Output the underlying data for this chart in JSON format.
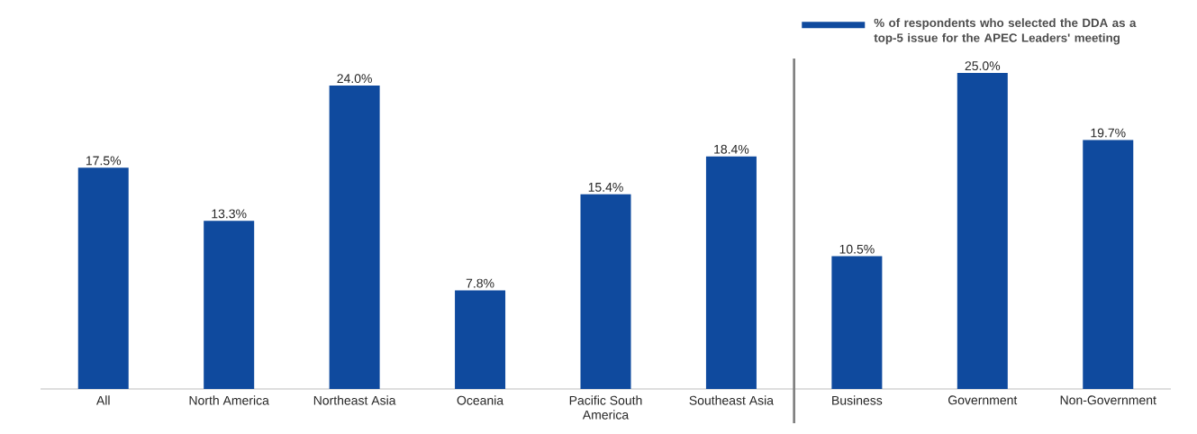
{
  "chart_data": {
    "type": "bar",
    "categories": [
      "All",
      "North America",
      "Northeast Asia",
      "Oceania",
      "Pacific South America",
      "Southeast Asia",
      "Business",
      "Government",
      "Non-Government"
    ],
    "series": [
      {
        "name": "% of respondents who selected the DDA as a top-5 issue for the APEC Leaders' meeting",
        "color": "#0f4a9e",
        "values": [
          17.5,
          13.3,
          24.0,
          7.8,
          15.4,
          18.4,
          10.5,
          25.0,
          19.7
        ],
        "value_labels": [
          "17.5%",
          "13.3%",
          "24.0%",
          "7.8%",
          "15.4%",
          "18.4%",
          "10.5%",
          "25.0%",
          "19.7%"
        ]
      }
    ],
    "legend": "top right"
  }
}
